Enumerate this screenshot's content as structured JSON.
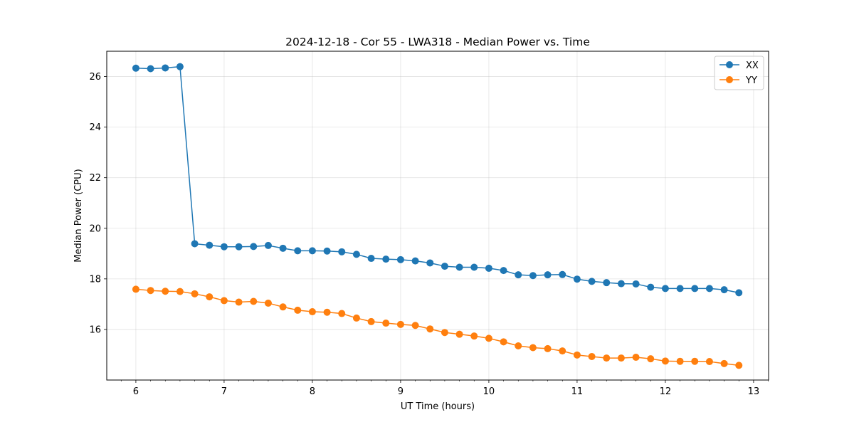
{
  "chart_data": {
    "type": "line",
    "title": "2024-12-18 - Cor 55 - LWA318 - Median Power vs. Time",
    "xlabel": "UT Time (hours)",
    "ylabel": "Median Power (CPU)",
    "xlim": [
      5.67,
      13.17
    ],
    "ylim": [
      14.0,
      27.0
    ],
    "xticks": [
      6,
      7,
      8,
      9,
      10,
      11,
      12,
      13
    ],
    "yticks": [
      16,
      18,
      20,
      22,
      24,
      26
    ],
    "grid": true,
    "legend_position": "top-right",
    "x": [
      6.0,
      6.1667,
      6.3333,
      6.5,
      6.6667,
      6.8333,
      7.0,
      7.1667,
      7.3333,
      7.5,
      7.6667,
      7.8333,
      8.0,
      8.1667,
      8.3333,
      8.5,
      8.6667,
      8.8333,
      9.0,
      9.1667,
      9.3333,
      9.5,
      9.6667,
      9.8333,
      10.0,
      10.1667,
      10.3333,
      10.5,
      10.6667,
      10.8333,
      11.0,
      11.1667,
      11.3333,
      11.5,
      11.6667,
      11.8333,
      12.0,
      12.1667,
      12.3333,
      12.5,
      12.6667,
      12.8333
    ],
    "series": [
      {
        "name": "XX",
        "color": "#1f77b4",
        "values": [
          26.33,
          26.31,
          26.34,
          26.39,
          19.39,
          19.33,
          19.27,
          19.27,
          19.28,
          19.32,
          19.21,
          19.11,
          19.11,
          19.1,
          19.07,
          18.97,
          18.81,
          18.78,
          18.76,
          18.71,
          18.63,
          18.5,
          18.46,
          18.46,
          18.42,
          18.33,
          18.16,
          18.13,
          18.16,
          18.17,
          17.99,
          17.9,
          17.85,
          17.81,
          17.8,
          17.67,
          17.62,
          17.62,
          17.62,
          17.62,
          17.57,
          17.45
        ]
      },
      {
        "name": "YY",
        "color": "#ff7f0e",
        "values": [
          17.59,
          17.54,
          17.51,
          17.5,
          17.41,
          17.29,
          17.14,
          17.08,
          17.11,
          17.04,
          16.89,
          16.76,
          16.7,
          16.68,
          16.63,
          16.45,
          16.31,
          16.25,
          16.2,
          16.16,
          16.02,
          15.88,
          15.81,
          15.74,
          15.65,
          15.51,
          15.35,
          15.28,
          15.24,
          15.15,
          14.99,
          14.93,
          14.87,
          14.87,
          14.9,
          14.84,
          14.75,
          14.74,
          14.74,
          14.73,
          14.65,
          14.58
        ]
      }
    ]
  }
}
